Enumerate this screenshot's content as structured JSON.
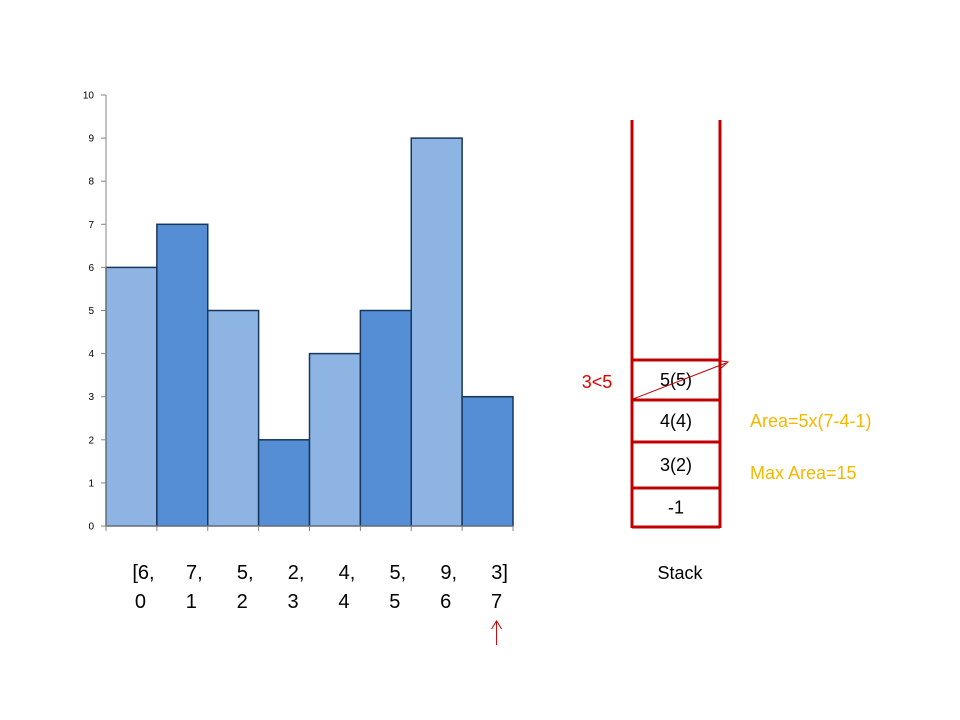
{
  "colors": {
    "bar_light": "#8EB4E3",
    "bar_dark": "#558ED5",
    "bar_stroke": "#17375E",
    "stack_red": "#C00000",
    "compare_red": "#E00000",
    "note_orange": "#F5B800"
  },
  "chart_data": {
    "type": "bar",
    "categories": [
      "0",
      "1",
      "2",
      "3",
      "4",
      "5",
      "6",
      "7"
    ],
    "values": [
      6,
      7,
      5,
      2,
      4,
      5,
      9,
      3
    ],
    "ylim": [
      0,
      10
    ],
    "yticks": [
      "0",
      "1",
      "2",
      "3",
      "4",
      "5",
      "6",
      "7",
      "8",
      "9",
      "10"
    ],
    "grid": false
  },
  "array_labels": [
    {
      "value": "[6,",
      "index": "0"
    },
    {
      "value": "7,",
      "index": "1"
    },
    {
      "value": "5,",
      "index": "2"
    },
    {
      "value": "2,",
      "index": "3"
    },
    {
      "value": "4,",
      "index": "4"
    },
    {
      "value": "5,",
      "index": "5"
    },
    {
      "value": "9,",
      "index": "6"
    },
    {
      "value": "3]",
      "index": "7"
    }
  ],
  "pointer": {
    "index": 7,
    "icon": "up-arrow-icon"
  },
  "stack": {
    "label": "Stack",
    "cells_bottom_to_top": [
      "-1",
      "3(2)",
      "4(4)",
      "5(5)"
    ]
  },
  "comparison_label": "3<5",
  "notes": {
    "area": "Area=5x(7-4-1)",
    "max_area": "Max Area=15"
  }
}
